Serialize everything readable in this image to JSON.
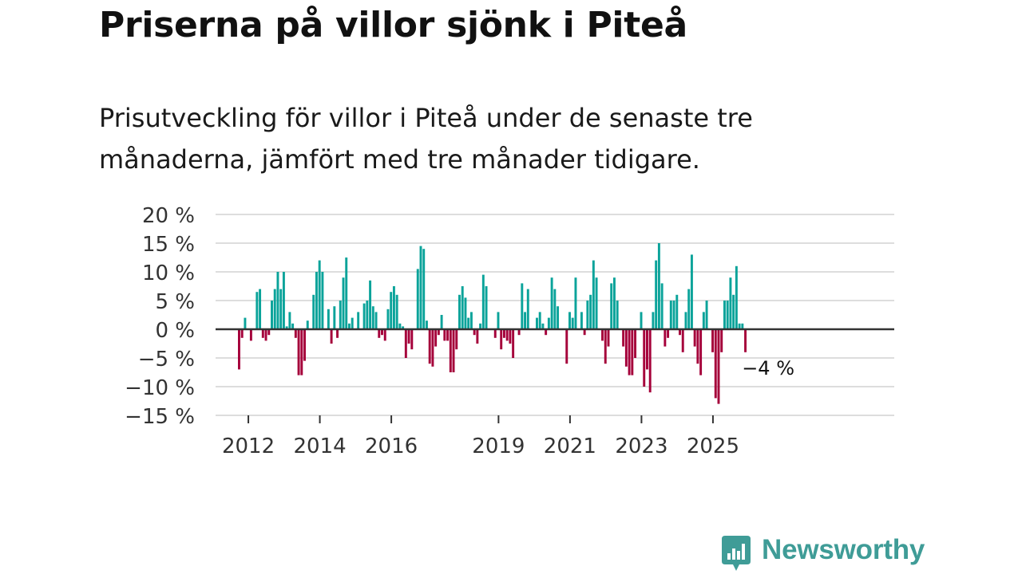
{
  "title": "Priserna på villor sjönk i Piteå",
  "subtitle": "Prisutveckling för villor i Piteå under de senaste tre månaderna, jämfört med tre månader tidigare.",
  "brand": {
    "name": "Newsworthy",
    "icon": "newsworthy-bar-chart-icon"
  },
  "colors": {
    "positive": "#0aa39a",
    "negative": "#a5003a",
    "grid": "#dddddd",
    "zero_line": "#333333",
    "brand": "#3f9c97"
  },
  "chart_data": {
    "type": "bar",
    "title": "Priserna på villor sjönk i Piteå",
    "xlabel": "",
    "ylabel": "",
    "unit": "%",
    "ylim": [
      -15,
      20
    ],
    "yticks": [
      20,
      15,
      10,
      5,
      0,
      -5,
      -10,
      -15
    ],
    "ytick_labels": [
      "20 %",
      "15 %",
      "10 %",
      "5 %",
      "0 %",
      "−5 %",
      "−10 %",
      "−15 %"
    ],
    "x_start": "2011-10",
    "x_tick_labels": [
      {
        "label": "2012",
        "index": 3
      },
      {
        "label": "2014",
        "index": 27
      },
      {
        "label": "2016",
        "index": 51
      },
      {
        "label": "2019",
        "index": 87
      },
      {
        "label": "2021",
        "index": 111
      },
      {
        "label": "2023",
        "index": 135
      },
      {
        "label": "2025",
        "index": 159
      }
    ],
    "values": [
      -7,
      -1.5,
      2,
      0,
      -2,
      0,
      6.5,
      7,
      -1.5,
      -2,
      -1,
      5,
      7,
      10,
      7,
      10,
      0.5,
      3,
      1,
      -1.5,
      -8,
      -8,
      -5.5,
      1.5,
      0,
      6,
      10,
      12,
      10,
      0,
      3.5,
      -2.5,
      4,
      -1.5,
      5,
      9,
      12.5,
      1,
      2,
      0,
      3,
      0,
      4.5,
      5,
      8.5,
      4,
      3,
      -1.5,
      -1,
      -2,
      3.5,
      6.5,
      7.5,
      6,
      1,
      0.5,
      -5,
      -2.5,
      -3.5,
      0,
      10.5,
      14.5,
      14,
      1.5,
      -6,
      -6.5,
      -3,
      -1,
      2.5,
      -2,
      -2,
      -7.5,
      -7.5,
      -3.5,
      6,
      7.5,
      5.5,
      2,
      3,
      -1,
      -2.5,
      1,
      9.5,
      7.5,
      0,
      0,
      -1.5,
      3,
      -3.5,
      -1.5,
      -2,
      -2.5,
      -5,
      0,
      -1,
      8,
      3,
      7,
      0,
      0,
      2,
      3,
      1,
      -1,
      2,
      9,
      7,
      4,
      0,
      0,
      -6,
      3,
      2,
      9,
      0,
      3,
      -1,
      5,
      6,
      12,
      9,
      0,
      -2,
      -6,
      -3,
      8,
      9,
      5,
      0,
      -3,
      -6.5,
      -8,
      -8,
      -5,
      0,
      3,
      -10,
      -7,
      -11,
      3,
      12,
      15,
      8,
      -3,
      -1.5,
      5,
      5,
      6,
      -1,
      -4,
      3,
      7,
      13,
      -3,
      -6,
      -8,
      3,
      5,
      0,
      -4,
      -12,
      -13,
      -4,
      5,
      5,
      9,
      6,
      11,
      1,
      1,
      -4
    ],
    "annotation": {
      "text": "−4 %",
      "target": "last_value",
      "value": -4
    }
  }
}
